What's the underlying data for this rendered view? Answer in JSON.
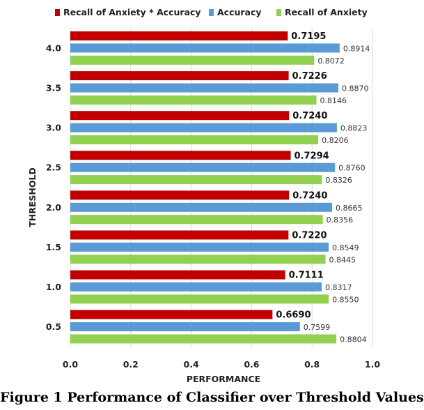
{
  "chart_data": {
    "type": "bar",
    "orientation": "horizontal",
    "categories": [
      "4.0",
      "3.5",
      "3.0",
      "2.5",
      "2.0",
      "1.5",
      "1.0",
      "0.5"
    ],
    "series": [
      {
        "name": "Recall of Anxiety * Accuracy",
        "color": "#c00000",
        "values": [
          0.7195,
          0.7226,
          0.724,
          0.7294,
          0.724,
          0.722,
          0.7111,
          0.669
        ],
        "labels": [
          "0.7195",
          "0.7226",
          "0.7240",
          "0.7294",
          "0.7240",
          "0.7220",
          "0.7111",
          "0.6690"
        ]
      },
      {
        "name": "Accuracy",
        "color": "#5b9bd5",
        "values": [
          0.8914,
          0.887,
          0.8823,
          0.876,
          0.8665,
          0.8549,
          0.8317,
          0.7599
        ],
        "labels": [
          "0.8914",
          "0.8870",
          "0.8823",
          "0.8760",
          "0.8665",
          "0.8549",
          "0.8317",
          "0.7599"
        ]
      },
      {
        "name": "Recall of Anxiety",
        "color": "#92d050",
        "values": [
          0.8072,
          0.8146,
          0.8206,
          0.8326,
          0.8356,
          0.8445,
          0.855,
          0.8804
        ],
        "labels": [
          "0.8072",
          "0.8146",
          "0.8206",
          "0.8326",
          "0.8356",
          "0.8445",
          "0.8550",
          "0.8804"
        ]
      }
    ],
    "xlabel": "PERFORMANCE",
    "ylabel": "THRESHOLD",
    "xlim": [
      0.0,
      1.0
    ],
    "xticks": [
      "0.0",
      "0.2",
      "0.4",
      "0.6",
      "0.8",
      "1.0"
    ],
    "grid": true,
    "legend": "top"
  },
  "caption": "Figure 1 Performance of Classifier over Threshold Values"
}
